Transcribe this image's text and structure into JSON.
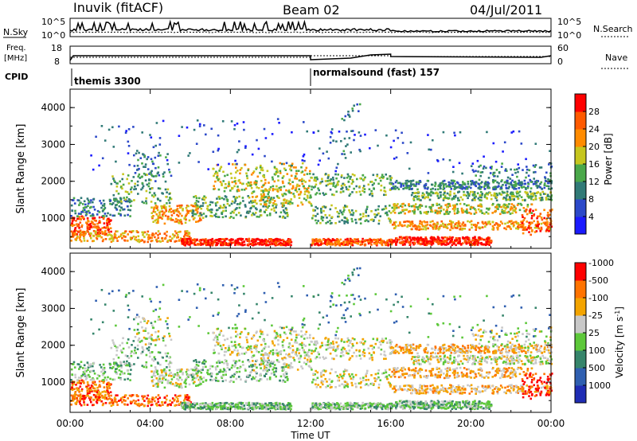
{
  "header": {
    "title": "Inuvik (fitACF)",
    "beam": "Beam 02",
    "date": "04/Jul/2011"
  },
  "top_panels": {
    "nsky_label": "N.Sky",
    "nsky_ticks": [
      "10^5",
      "10^0"
    ],
    "nsearch_label": "N.Search",
    "nsearch_ticks": [
      "10^5",
      "10^0"
    ],
    "freq_label_1": "Freq.",
    "freq_label_2": "[MHz]",
    "freq_ticks": [
      "18",
      "8"
    ],
    "nave_label": "Nave",
    "nave_ticks": [
      "60",
      "0"
    ],
    "cpid_label": "CPID",
    "cpid_entries": [
      {
        "label": "themis 3300",
        "start_hour": 0
      },
      {
        "label": "normalsound (fast) 157",
        "start_hour": 12
      }
    ]
  },
  "chart_data": [
    {
      "type": "heatmap",
      "title": "",
      "xlabel": "",
      "ylabel": "Slant Range [km]",
      "xlim": [
        0,
        24
      ],
      "ylim": [
        180,
        4500
      ],
      "y_ticks": [
        1000,
        2000,
        3000,
        4000
      ],
      "colorbar": {
        "label": "Power [dB]",
        "ticks": [
          "4",
          "8",
          "12",
          "16",
          "20",
          "24",
          "28"
        ],
        "colors": [
          "#1b1bff",
          "#2c49c9",
          "#317a77",
          "#4aa84a",
          "#c6c61e",
          "#ff8b00",
          "#ff5a00",
          "#ff0000"
        ]
      }
    },
    {
      "type": "heatmap",
      "title": "",
      "xlabel": "Time UT",
      "ylabel": "Slant Range [km]",
      "xlim": [
        0,
        24
      ],
      "ylim": [
        180,
        4500
      ],
      "x_ticks": [
        "00:00",
        "04:00",
        "08:00",
        "12:00",
        "16:00",
        "20:00",
        "00:00"
      ],
      "y_ticks": [
        1000,
        2000,
        3000,
        4000
      ],
      "colorbar": {
        "label": "Velocity [m s^-1]",
        "ticks": [
          "1000",
          "500",
          "100",
          "25",
          "-25",
          "-100",
          "-500",
          "-1000"
        ],
        "colors": [
          "#1f2db4",
          "#2f5fb0",
          "#36856b",
          "#5dc83a",
          "#c8c8c8",
          "#f3a400",
          "#ff7300",
          "#ff0000"
        ]
      }
    }
  ]
}
